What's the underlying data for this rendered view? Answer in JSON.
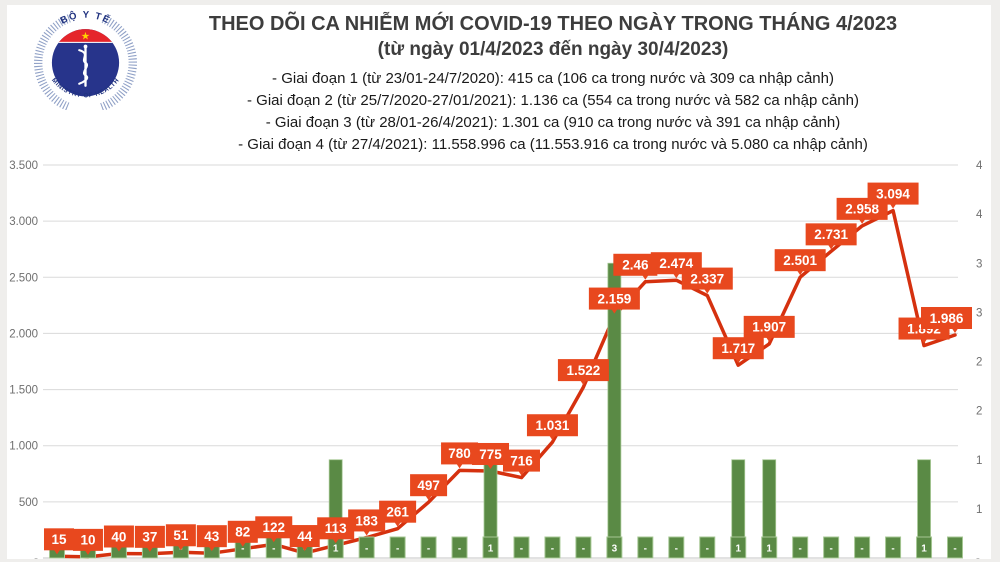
{
  "header": {
    "title": "THEO DÕI CA NHIỄM MỚI COVID-19 THEO NGÀY TRONG THÁNG 4/2023",
    "subtitle": "(từ ngày 01/4/2023 đến ngày 30/4/2023)",
    "bullets": [
      "- Giai đoạn 1 (từ 23/01-24/7/2020): 415 ca (106 ca trong nước và 309 ca nhập cảnh)",
      "- Giai đoạn 2 (từ 25/7/2020-27/01/2021): 1.136 ca (554 ca trong nước và 582 ca nhập cảnh)",
      "- Giai đoạn 3 (từ 28/01-26/4/2021): 1.301 ca (910 ca trong nước và 391 ca nhập cảnh)",
      "- Giai đoạn 4 (từ 27/4/2021): 11.558.996 ca (11.553.916 ca trong nước và 5.080 ca nhập cảnh)"
    ]
  },
  "logo": {
    "top_text": "BỘ Y TẾ",
    "bottom_text": "MINISTRY OF HEALTH",
    "blue": "#27348b",
    "red": "#e5252b",
    "star": "#ffd200",
    "hatch": "#8fa0c6"
  },
  "colors": {
    "line": "#d5310f",
    "case_label_bg": "#e8481e",
    "bar": "#5a8a45",
    "bar_border": "#a5c793",
    "grid": "#dadada",
    "axis_line": "#c6c6c6",
    "axis_text": "#6f6f6f",
    "label_text": "#ffffff"
  },
  "chart_data": {
    "type": "combo-line-bar",
    "x_count": 30,
    "days": [
      {
        "cases": 15,
        "cases_label": "15",
        "deaths": 0,
        "deaths_label": "-"
      },
      {
        "cases": 10,
        "cases_label": "10",
        "deaths": 0,
        "deaths_label": "-"
      },
      {
        "cases": 40,
        "cases_label": "40",
        "deaths": 0,
        "deaths_label": "-"
      },
      {
        "cases": 37,
        "cases_label": "37",
        "deaths": 0,
        "deaths_label": "-"
      },
      {
        "cases": 51,
        "cases_label": "51",
        "deaths": 0,
        "deaths_label": "-"
      },
      {
        "cases": 43,
        "cases_label": "43",
        "deaths": 0,
        "deaths_label": "-"
      },
      {
        "cases": 82,
        "cases_label": "82",
        "deaths": 0,
        "deaths_label": "-"
      },
      {
        "cases": 122,
        "cases_label": "122",
        "deaths": 0,
        "deaths_label": "-"
      },
      {
        "cases": 44,
        "cases_label": "44",
        "deaths": 0,
        "deaths_label": "-"
      },
      {
        "cases": 113,
        "cases_label": "113",
        "deaths": 1,
        "deaths_label": "1"
      },
      {
        "cases": 183,
        "cases_label": "183",
        "deaths": 0,
        "deaths_label": "-"
      },
      {
        "cases": 261,
        "cases_label": "261",
        "deaths": 0,
        "deaths_label": "-"
      },
      {
        "cases": 497,
        "cases_label": "497",
        "deaths": 0,
        "deaths_label": "-"
      },
      {
        "cases": 780,
        "cases_label": "780",
        "deaths": 0,
        "deaths_label": "-"
      },
      {
        "cases": 775,
        "cases_label": "775",
        "deaths": 1,
        "deaths_label": "1"
      },
      {
        "cases": 716,
        "cases_label": "716",
        "deaths": 0,
        "deaths_label": "-"
      },
      {
        "cases": 1031,
        "cases_label": "1.031",
        "deaths": 0,
        "deaths_label": "-"
      },
      {
        "cases": 1522,
        "cases_label": "1.522",
        "deaths": 0,
        "deaths_label": "-"
      },
      {
        "cases": 2159,
        "cases_label": "2.159",
        "deaths": 3,
        "deaths_label": "3"
      },
      {
        "cases": 2460,
        "cases_label": "2.46",
        "deaths": 0,
        "deaths_label": "-"
      },
      {
        "cases": 2474,
        "cases_label": "2.474",
        "deaths": 0,
        "deaths_label": "-"
      },
      {
        "cases": 2337,
        "cases_label": "2.337",
        "deaths": 0,
        "deaths_label": "-"
      },
      {
        "cases": 1717,
        "cases_label": "1.717",
        "deaths": 1,
        "deaths_label": "1"
      },
      {
        "cases": 1907,
        "cases_label": "1.907",
        "deaths": 1,
        "deaths_label": "1"
      },
      {
        "cases": 2501,
        "cases_label": "2.501",
        "deaths": 0,
        "deaths_label": "-"
      },
      {
        "cases": 2731,
        "cases_label": "2.731",
        "deaths": 0,
        "deaths_label": "-"
      },
      {
        "cases": 2958,
        "cases_label": "2.958",
        "deaths": 0,
        "deaths_label": "-"
      },
      {
        "cases": 3094,
        "cases_label": "3.094",
        "deaths": 0,
        "deaths_label": "-"
      },
      {
        "cases": 1892,
        "cases_label": "1.892",
        "deaths": 1,
        "deaths_label": "1"
      },
      {
        "cases": 1986,
        "cases_label": "1.986",
        "deaths": 0,
        "deaths_label": "-"
      }
    ],
    "left_axis": {
      "max": 3500,
      "grid": true,
      "ticks": [
        {
          "label": "3.500",
          "v": 3500
        },
        {
          "label": "3.000",
          "v": 3000
        },
        {
          "label": "2.500",
          "v": 2500
        },
        {
          "label": "2.000",
          "v": 2000
        },
        {
          "label": "1.500",
          "v": 1500
        },
        {
          "label": "1.000",
          "v": 1000
        },
        {
          "label": "500",
          "v": 500
        },
        {
          "label": "-",
          "v": 0
        }
      ]
    },
    "right_axis": {
      "max": 4,
      "grid": false,
      "ticks": [
        {
          "label": "4",
          "v": 4
        },
        {
          "label": "4",
          "v": 3.5
        },
        {
          "label": "3",
          "v": 3
        },
        {
          "label": "3",
          "v": 2.5
        },
        {
          "label": "2",
          "v": 2
        },
        {
          "label": "2",
          "v": 1.5
        },
        {
          "label": "1",
          "v": 1
        },
        {
          "label": "1",
          "v": 0.5
        },
        {
          "label": "-",
          "v": 0
        }
      ]
    }
  }
}
